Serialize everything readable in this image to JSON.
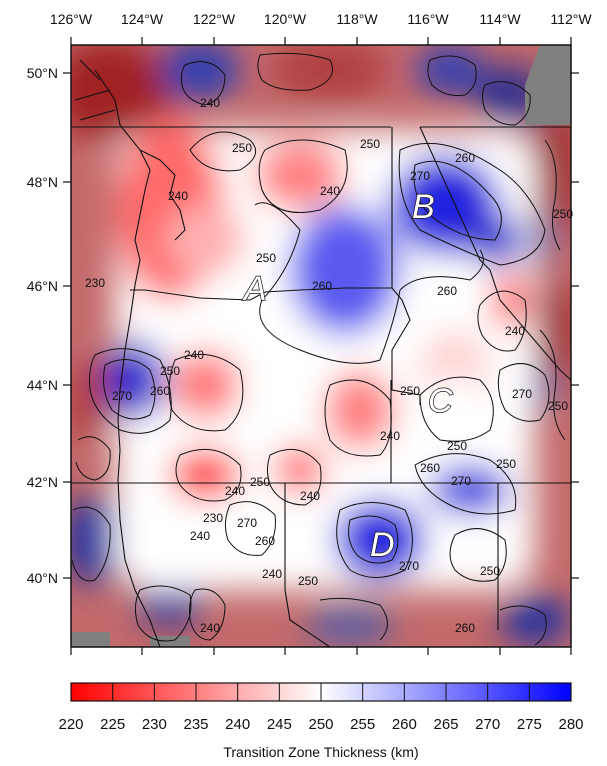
{
  "map": {
    "lon_ticks": [
      "126°W",
      "124°W",
      "122°W",
      "120°W",
      "118°W",
      "116°W",
      "114°W",
      "112°W"
    ],
    "lat_ticks": [
      "50°N",
      "48°N",
      "46°N",
      "44°N",
      "42°N",
      "40°N"
    ],
    "regions": [
      "A",
      "B",
      "C",
      "D"
    ],
    "contour_labels": [
      "240",
      "250",
      "240",
      "250",
      "270",
      "260",
      "240",
      "250",
      "230",
      "260",
      "240",
      "260",
      "240",
      "270",
      "250",
      "260",
      "250",
      "270",
      "250",
      "250",
      "270",
      "260",
      "240",
      "250",
      "240",
      "240",
      "250",
      "230",
      "240",
      "270",
      "260",
      "270",
      "250",
      "240",
      "260",
      "250",
      "240",
      "250"
    ],
    "colors": {
      "low": "#ff0000",
      "mid": "#ffffff",
      "high": "#0000ff",
      "land_gray": "#808080"
    }
  },
  "colorbar": {
    "min": 220,
    "max": 280,
    "step": 5,
    "labels": [
      "220",
      "225",
      "230",
      "235",
      "240",
      "245",
      "250",
      "255",
      "260",
      "265",
      "270",
      "275",
      "280"
    ],
    "title": "Transition Zone Thickness (km)"
  }
}
